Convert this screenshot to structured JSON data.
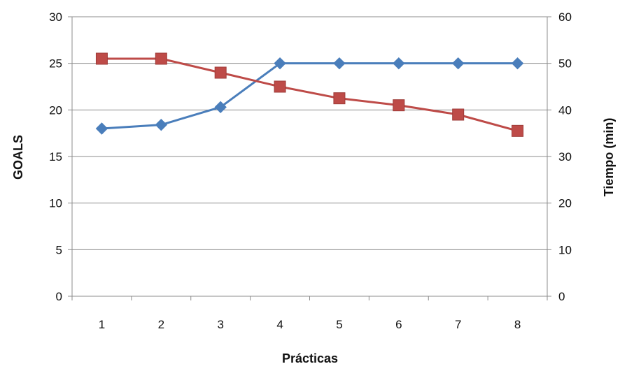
{
  "chart_data": {
    "type": "line",
    "title": "",
    "xlabel": "Prácticas",
    "ylabel": "GOALS",
    "y2label": "Tiempo (min)",
    "categories": [
      "1",
      "2",
      "3",
      "4",
      "5",
      "6",
      "7",
      "8"
    ],
    "ylim": [
      0,
      30
    ],
    "y2lim": [
      0,
      60
    ],
    "yticks": [
      "0",
      "5",
      "10",
      "15",
      "20",
      "25",
      "30"
    ],
    "y2ticks": [
      "0",
      "10",
      "20",
      "30",
      "40",
      "50",
      "60"
    ],
    "grid": true,
    "legend": "none",
    "series": [
      {
        "axis": "left",
        "color": "#4a7ebb",
        "marker": "diamond",
        "values": [
          18.0,
          18.4,
          20.3,
          25.0,
          25.0,
          25.0,
          25.0,
          25.0
        ]
      },
      {
        "axis": "right",
        "color": "#be4b48",
        "marker": "square",
        "values": [
          51,
          51,
          48,
          45,
          42.5,
          41,
          39,
          35.5
        ]
      }
    ]
  }
}
